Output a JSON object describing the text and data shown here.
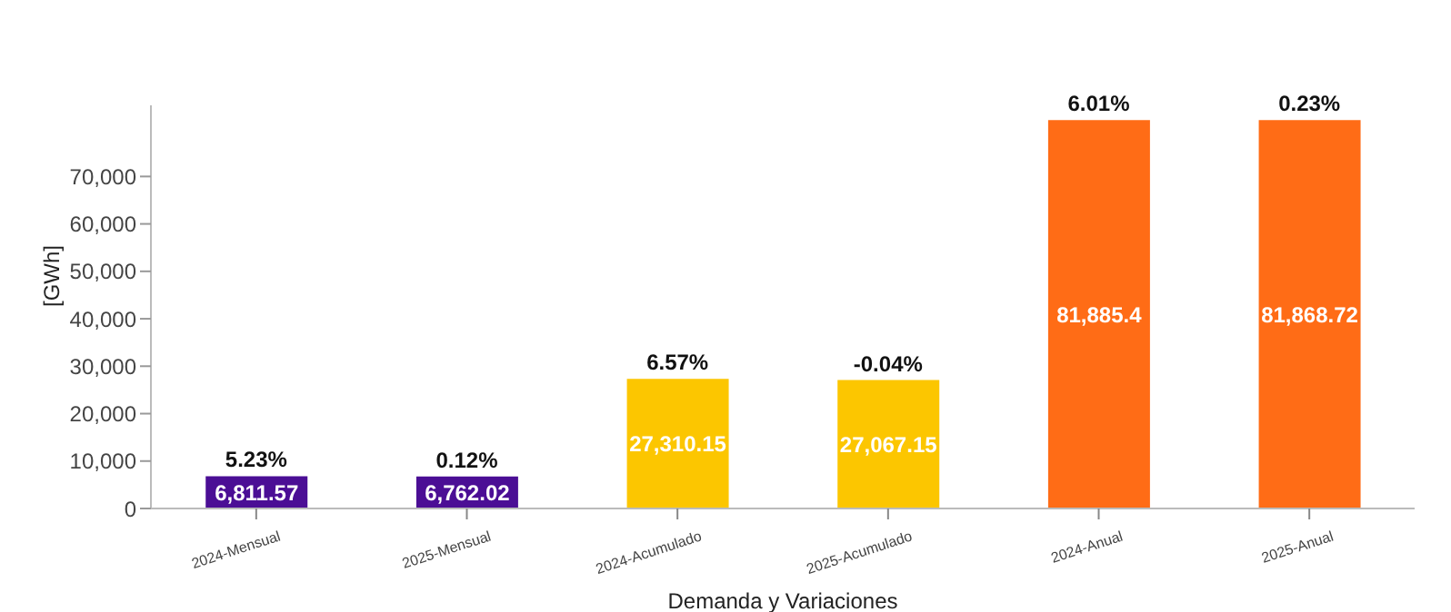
{
  "chart_data": {
    "type": "bar",
    "xlabel": "Demanda y Variaciones",
    "ylabel": "[GWh]",
    "categories": [
      "2024-Mensual",
      "2025-Mensual",
      "2024-Acumulado",
      "2025-Acumulado",
      "2024-Anual",
      "2025-Anual"
    ],
    "values": [
      6811.57,
      6762.02,
      27310.15,
      27067.15,
      81885.4,
      81868.72
    ],
    "colors": [
      "#4b0e95",
      "#4b0e95",
      "#fcc600",
      "#fcc600",
      "#ff6c16",
      "#ff6c16"
    ],
    "value_labels": [
      "6,811.57",
      "6,762.02",
      "27,310.15",
      "27,067.15",
      "81,885.4",
      "81,868.72"
    ],
    "ylim": [
      0,
      85000
    ],
    "yticks": [
      0,
      {
        "value": 10000,
        "label": "10,000"
      },
      {
        "value": 20000,
        "label": "20,000"
      },
      {
        "value": 30000,
        "label": "30,000"
      },
      {
        "value": 40000,
        "label": "40,000"
      },
      {
        "value": 50000,
        "label": "50,000"
      },
      {
        "value": 60000,
        "label": "60,000"
      },
      {
        "value": 70000,
        "label": "70,000"
      }
    ],
    "grid": false,
    "legend": false,
    "annotations": [
      {
        "text": "5.23%",
        "x": "2024-Mensual",
        "y": 6811.57
      },
      {
        "text": "0.12%",
        "x": "2025-Mensual",
        "y": 6762.02
      },
      {
        "text": "6.57%",
        "x": "2024-Acumulado",
        "y": 27310.15
      },
      {
        "text": "-0.04%",
        "x": "2025-Acumulado",
        "y": 27067.15
      },
      {
        "text": "6.01%",
        "x": "2024-Anual",
        "y": 81885.4
      },
      {
        "text": "0.23%",
        "x": "2025-Anual",
        "y": 81868.72
      }
    ]
  }
}
